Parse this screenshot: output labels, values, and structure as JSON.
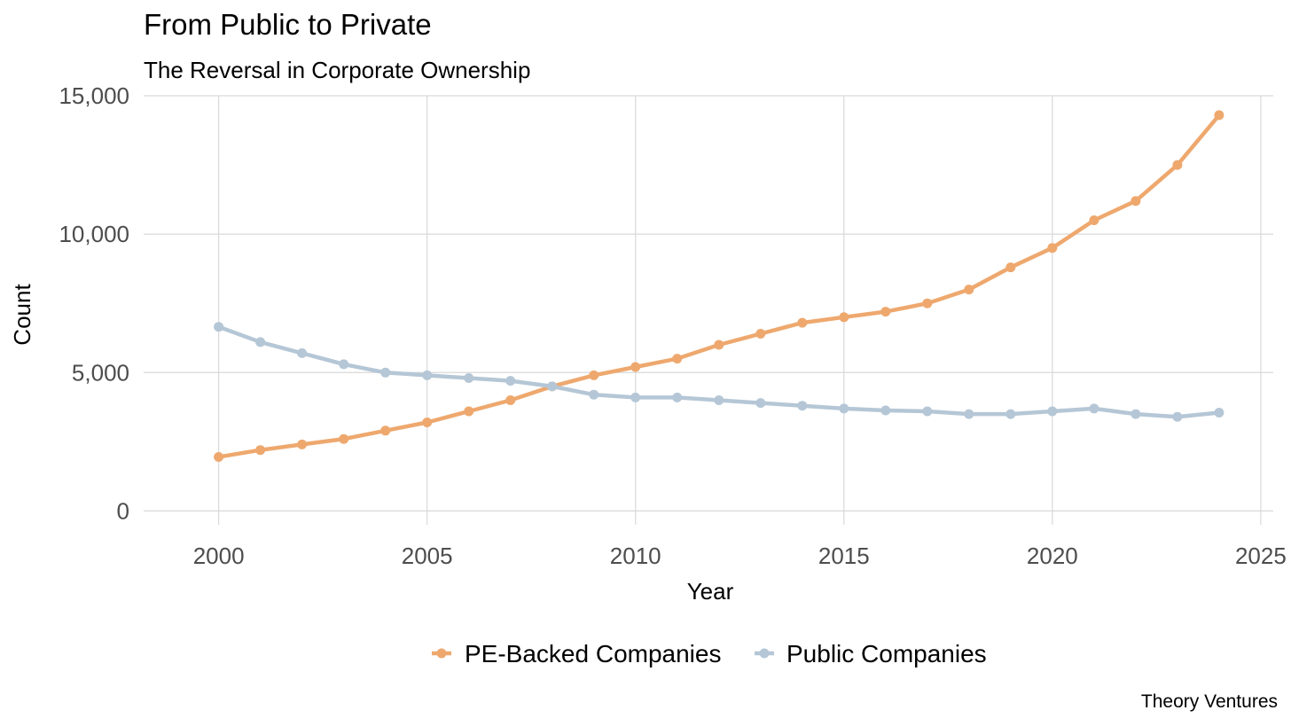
{
  "chart_data": {
    "type": "line",
    "title": "From Public to Private",
    "subtitle": "The Reversal in Corporate Ownership",
    "xlabel": "Year",
    "ylabel": "Count",
    "caption": "Theory Ventures",
    "xlim": [
      1998.2,
      2025.3
    ],
    "ylim": [
      -500,
      15000
    ],
    "x_ticks": [
      2000,
      2005,
      2010,
      2015,
      2020,
      2025
    ],
    "x_tick_labels": [
      "2000",
      "2005",
      "2010",
      "2015",
      "2020",
      "2025"
    ],
    "y_ticks": [
      0,
      5000,
      10000,
      15000
    ],
    "y_tick_labels": [
      "0",
      "5,000",
      "10,000",
      "15,000"
    ],
    "grid": true,
    "legend_position": "bottom",
    "x": [
      2000,
      2001,
      2002,
      2003,
      2004,
      2005,
      2006,
      2007,
      2008,
      2009,
      2010,
      2011,
      2012,
      2013,
      2014,
      2015,
      2016,
      2017,
      2018,
      2019,
      2020,
      2021,
      2022,
      2023,
      2024
    ],
    "series": [
      {
        "name": "PE-Backed Companies",
        "color": "#EEA86E",
        "values": [
          1950,
          2200,
          2400,
          2600,
          2900,
          3200,
          3600,
          4000,
          4500,
          4900,
          5200,
          5500,
          6000,
          6400,
          6800,
          7000,
          7200,
          7500,
          8000,
          8800,
          9500,
          10500,
          11200,
          12500,
          14300
        ]
      },
      {
        "name": "Public Companies",
        "color": "#B5C7D6",
        "values": [
          6650,
          6100,
          5700,
          5300,
          5000,
          4900,
          4800,
          4700,
          4500,
          4200,
          4100,
          4100,
          4000,
          3900,
          3800,
          3700,
          3630,
          3600,
          3500,
          3500,
          3600,
          3700,
          3500,
          3400,
          3550
        ]
      }
    ]
  }
}
